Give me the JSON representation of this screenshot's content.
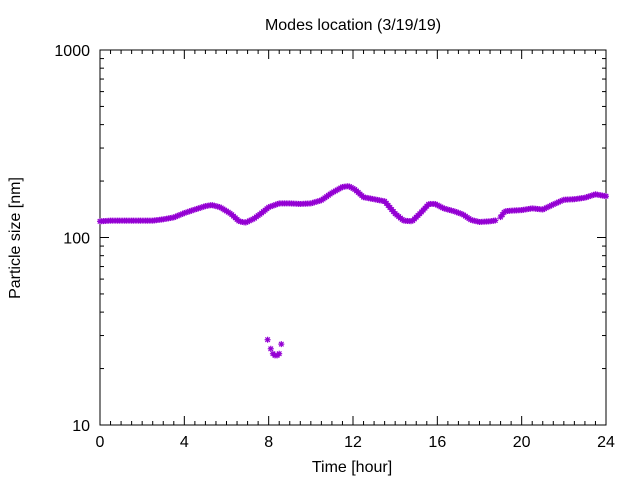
{
  "chart_data": {
    "type": "scatter",
    "title": "Modes location (3/19/19)",
    "xlabel": "Time [hour]",
    "ylabel": "Particle size [nm]",
    "xlim": [
      0,
      24
    ],
    "ylim": [
      10,
      1000
    ],
    "yscale": "log",
    "xticks": [
      0,
      4,
      8,
      12,
      16,
      20,
      24
    ],
    "yticks": [
      10,
      100,
      1000
    ],
    "xtick_labels": [
      "0",
      "4",
      "8",
      "12",
      "16",
      "20",
      "24"
    ],
    "ytick_labels": [
      "10",
      "100",
      "1000"
    ],
    "grid": false,
    "legend": "none",
    "marker": "star",
    "color": "#9400d3",
    "series": [
      {
        "main_mode_anchors": [
          [
            0.0,
            122
          ],
          [
            0.5,
            123
          ],
          [
            1.0,
            123
          ],
          [
            1.5,
            123
          ],
          [
            2.0,
            123
          ],
          [
            2.5,
            123
          ],
          [
            3.0,
            125
          ],
          [
            3.5,
            128
          ],
          [
            4.0,
            135
          ],
          [
            4.5,
            141
          ],
          [
            5.0,
            147
          ],
          [
            5.3,
            149
          ],
          [
            5.7,
            145
          ],
          [
            6.2,
            134
          ],
          [
            6.6,
            122
          ],
          [
            6.9,
            120
          ],
          [
            7.3,
            126
          ],
          [
            7.7,
            136
          ],
          [
            8.0,
            145
          ],
          [
            8.5,
            152
          ],
          [
            9.0,
            152
          ],
          [
            9.5,
            151
          ],
          [
            10.0,
            152
          ],
          [
            10.5,
            158
          ],
          [
            11.0,
            173
          ],
          [
            11.5,
            186
          ],
          [
            11.8,
            188
          ],
          [
            12.1,
            180
          ],
          [
            12.5,
            164
          ],
          [
            13.0,
            160
          ],
          [
            13.5,
            156
          ],
          [
            14.0,
            134
          ],
          [
            14.4,
            123
          ],
          [
            14.8,
            122
          ],
          [
            15.2,
            135
          ],
          [
            15.6,
            151
          ],
          [
            15.9,
            151
          ],
          [
            16.3,
            143
          ],
          [
            16.8,
            138
          ],
          [
            17.2,
            133
          ],
          [
            17.6,
            124
          ],
          [
            18.0,
            121
          ],
          [
            18.5,
            122
          ],
          [
            18.9,
            124
          ],
          [
            19.2,
            138
          ],
          [
            19.5,
            139
          ],
          [
            20.0,
            140
          ],
          [
            20.5,
            143
          ],
          [
            21.0,
            141
          ],
          [
            21.5,
            150
          ],
          [
            22.0,
            159
          ],
          [
            22.5,
            160
          ],
          [
            23.0,
            163
          ],
          [
            23.5,
            170
          ],
          [
            24.0,
            166
          ]
        ]
      },
      {
        "secondary_points": [
          [
            7.95,
            28.5
          ],
          [
            8.1,
            25.5
          ],
          [
            8.2,
            24
          ],
          [
            8.3,
            23.5
          ],
          [
            8.4,
            23.5
          ],
          [
            8.5,
            24
          ],
          [
            8.6,
            27
          ]
        ]
      }
    ]
  }
}
